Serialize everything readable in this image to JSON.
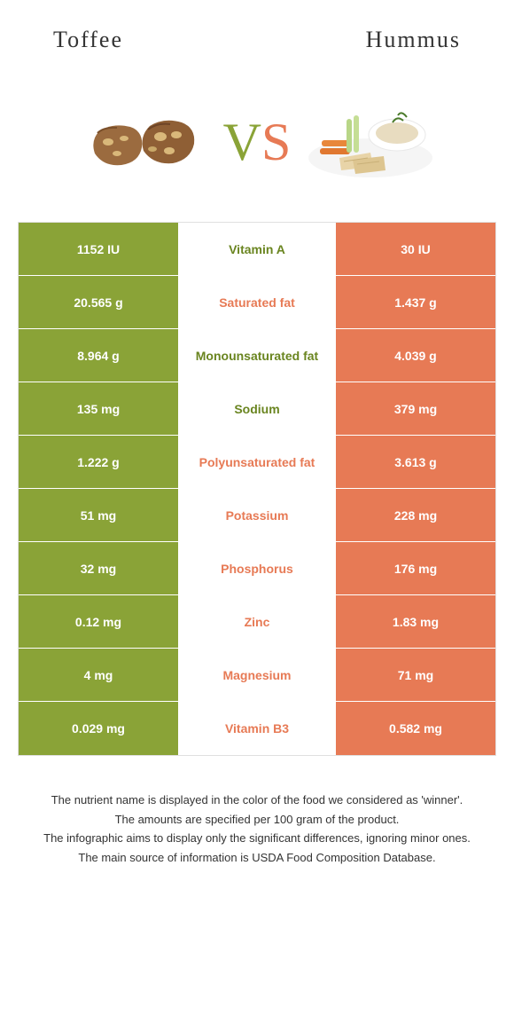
{
  "header": {
    "left_title": "Toffee",
    "right_title": "Hummus"
  },
  "vs": {
    "v": "V",
    "s": "S"
  },
  "colors": {
    "green": "#8aa337",
    "orange": "#e77a55",
    "text_green": "#6a8520",
    "text_orange": "#e77a55",
    "white": "#ffffff",
    "border": "#e0e0e0"
  },
  "rows": [
    {
      "left": "1152 IU",
      "mid": "Vitamin A",
      "mid_color": "green",
      "right": "30 IU",
      "left_bg": "green",
      "right_bg": "orange"
    },
    {
      "left": "20.565 g",
      "mid": "Saturated fat",
      "mid_color": "orange",
      "right": "1.437 g",
      "left_bg": "green",
      "right_bg": "orange"
    },
    {
      "left": "8.964 g",
      "mid": "Monounsaturated fat",
      "mid_color": "green",
      "right": "4.039 g",
      "left_bg": "green",
      "right_bg": "orange"
    },
    {
      "left": "135 mg",
      "mid": "Sodium",
      "mid_color": "green",
      "right": "379 mg",
      "left_bg": "green",
      "right_bg": "orange"
    },
    {
      "left": "1.222 g",
      "mid": "Polyunsaturated fat",
      "mid_color": "orange",
      "right": "3.613 g",
      "left_bg": "green",
      "right_bg": "orange"
    },
    {
      "left": "51 mg",
      "mid": "Potassium",
      "mid_color": "orange",
      "right": "228 mg",
      "left_bg": "green",
      "right_bg": "orange"
    },
    {
      "left": "32 mg",
      "mid": "Phosphorus",
      "mid_color": "orange",
      "right": "176 mg",
      "left_bg": "green",
      "right_bg": "orange"
    },
    {
      "left": "0.12 mg",
      "mid": "Zinc",
      "mid_color": "orange",
      "right": "1.83 mg",
      "left_bg": "green",
      "right_bg": "orange"
    },
    {
      "left": "4 mg",
      "mid": "Magnesium",
      "mid_color": "orange",
      "right": "71 mg",
      "left_bg": "green",
      "right_bg": "orange"
    },
    {
      "left": "0.029 mg",
      "mid": "Vitamin B3",
      "mid_color": "orange",
      "right": "0.582 mg",
      "left_bg": "green",
      "right_bg": "orange"
    }
  ],
  "footer": {
    "line1": "The nutrient name is displayed in the color of the food we considered as 'winner'.",
    "line2": "The amounts are specified per 100 gram of the product.",
    "line3": "The infographic aims to display only the significant differences, ignoring minor ones.",
    "line4": "The main source of information is USDA Food Composition Database."
  }
}
